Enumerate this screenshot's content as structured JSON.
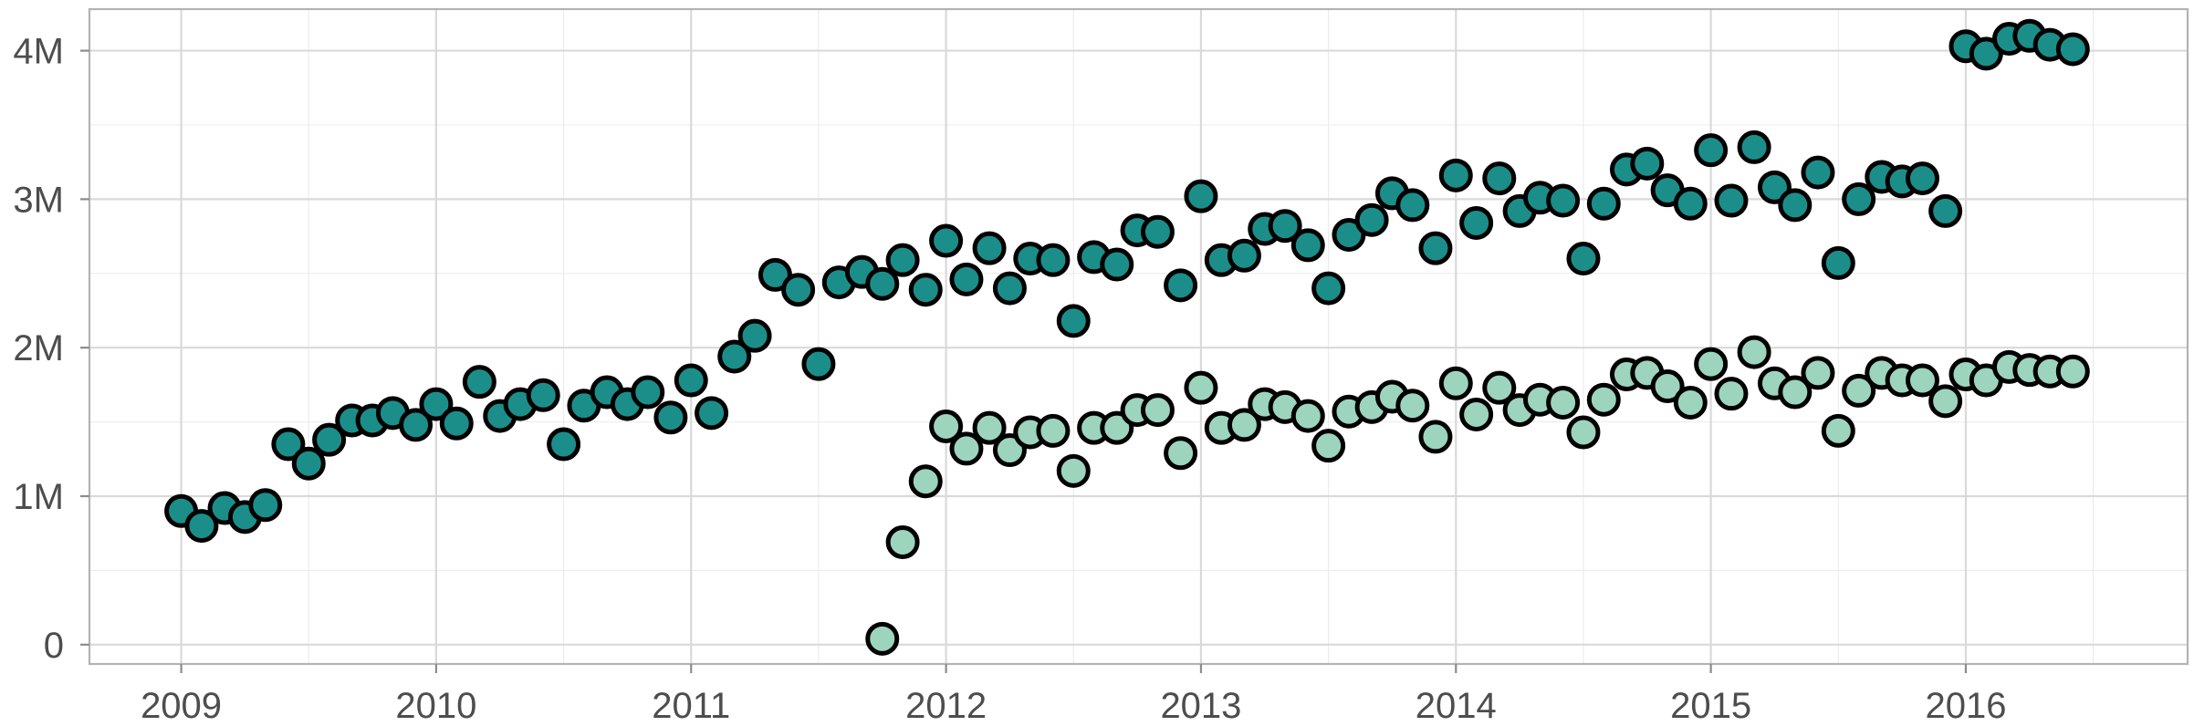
{
  "chart_data": {
    "type": "scatter",
    "title": "",
    "xlabel": "",
    "ylabel": "",
    "xlim": [
      2008.64,
      2016.87
    ],
    "ylim": [
      -130000,
      4280000
    ],
    "x_ticks": [
      2009,
      2010,
      2011,
      2012,
      2013,
      2014,
      2015,
      2016
    ],
    "x_tick_labels": [
      "2009",
      "2010",
      "2011",
      "2012",
      "2013",
      "2014",
      "2015",
      "2016"
    ],
    "y_ticks": [
      0,
      1000000,
      2000000,
      3000000,
      4000000
    ],
    "y_tick_labels": [
      "0",
      "1M",
      "2M",
      "3M",
      "4M"
    ],
    "grid": true,
    "legend": "none",
    "series": [
      {
        "color": "#1b8e8a",
        "points": [
          [
            2009.0,
            900000
          ],
          [
            2009.08,
            800000
          ],
          [
            2009.17,
            920000
          ],
          [
            2009.25,
            860000
          ],
          [
            2009.33,
            940000
          ],
          [
            2009.42,
            1350000
          ],
          [
            2009.5,
            1220000
          ],
          [
            2009.58,
            1380000
          ],
          [
            2009.67,
            1510000
          ],
          [
            2009.75,
            1510000
          ],
          [
            2009.83,
            1560000
          ],
          [
            2009.92,
            1480000
          ],
          [
            2010.0,
            1620000
          ],
          [
            2010.08,
            1490000
          ],
          [
            2010.17,
            1770000
          ],
          [
            2010.25,
            1540000
          ],
          [
            2010.33,
            1620000
          ],
          [
            2010.42,
            1680000
          ],
          [
            2010.5,
            1350000
          ],
          [
            2010.58,
            1610000
          ],
          [
            2010.67,
            1700000
          ],
          [
            2010.75,
            1620000
          ],
          [
            2010.83,
            1700000
          ],
          [
            2010.92,
            1530000
          ],
          [
            2011.0,
            1780000
          ],
          [
            2011.08,
            1560000
          ],
          [
            2011.17,
            1940000
          ],
          [
            2011.25,
            2080000
          ],
          [
            2011.33,
            2490000
          ],
          [
            2011.42,
            2390000
          ],
          [
            2011.5,
            1890000
          ],
          [
            2011.58,
            2440000
          ],
          [
            2011.67,
            2510000
          ],
          [
            2011.75,
            2430000
          ],
          [
            2011.83,
            2590000
          ],
          [
            2011.92,
            2390000
          ],
          [
            2012.0,
            2720000
          ],
          [
            2012.08,
            2460000
          ],
          [
            2012.17,
            2670000
          ],
          [
            2012.25,
            2400000
          ],
          [
            2012.33,
            2600000
          ],
          [
            2012.42,
            2590000
          ],
          [
            2012.5,
            2180000
          ],
          [
            2012.58,
            2610000
          ],
          [
            2012.67,
            2560000
          ],
          [
            2012.75,
            2790000
          ],
          [
            2012.83,
            2780000
          ],
          [
            2012.92,
            2420000
          ],
          [
            2013.0,
            3020000
          ],
          [
            2013.08,
            2590000
          ],
          [
            2013.17,
            2620000
          ],
          [
            2013.25,
            2800000
          ],
          [
            2013.33,
            2820000
          ],
          [
            2013.42,
            2690000
          ],
          [
            2013.5,
            2400000
          ],
          [
            2013.58,
            2760000
          ],
          [
            2013.67,
            2860000
          ],
          [
            2013.75,
            3040000
          ],
          [
            2013.83,
            2960000
          ],
          [
            2013.92,
            2670000
          ],
          [
            2014.0,
            3160000
          ],
          [
            2014.08,
            2840000
          ],
          [
            2014.17,
            3140000
          ],
          [
            2014.25,
            2920000
          ],
          [
            2014.33,
            3010000
          ],
          [
            2014.42,
            2990000
          ],
          [
            2014.5,
            2600000
          ],
          [
            2014.58,
            2970000
          ],
          [
            2014.67,
            3200000
          ],
          [
            2014.75,
            3240000
          ],
          [
            2014.83,
            3060000
          ],
          [
            2014.92,
            2970000
          ],
          [
            2015.0,
            3330000
          ],
          [
            2015.08,
            2990000
          ],
          [
            2015.17,
            3350000
          ],
          [
            2015.25,
            3080000
          ],
          [
            2015.33,
            2960000
          ],
          [
            2015.42,
            3180000
          ],
          [
            2015.5,
            2570000
          ],
          [
            2015.58,
            3000000
          ],
          [
            2015.67,
            3150000
          ],
          [
            2015.75,
            3120000
          ],
          [
            2015.83,
            3140000
          ],
          [
            2015.92,
            2920000
          ],
          [
            2016.0,
            4030000
          ],
          [
            2016.08,
            3980000
          ],
          [
            2016.17,
            4080000
          ],
          [
            2016.25,
            4100000
          ],
          [
            2016.33,
            4040000
          ],
          [
            2016.42,
            4010000
          ]
        ]
      },
      {
        "color": "#9dd4bd",
        "points": [
          [
            2011.75,
            40000
          ],
          [
            2011.83,
            690000
          ],
          [
            2011.92,
            1100000
          ],
          [
            2012.0,
            1470000
          ],
          [
            2012.08,
            1320000
          ],
          [
            2012.17,
            1460000
          ],
          [
            2012.25,
            1310000
          ],
          [
            2012.33,
            1430000
          ],
          [
            2012.42,
            1440000
          ],
          [
            2012.5,
            1170000
          ],
          [
            2012.58,
            1460000
          ],
          [
            2012.67,
            1460000
          ],
          [
            2012.75,
            1580000
          ],
          [
            2012.83,
            1580000
          ],
          [
            2012.92,
            1290000
          ],
          [
            2013.0,
            1730000
          ],
          [
            2013.08,
            1460000
          ],
          [
            2013.17,
            1480000
          ],
          [
            2013.25,
            1620000
          ],
          [
            2013.33,
            1600000
          ],
          [
            2013.42,
            1540000
          ],
          [
            2013.5,
            1340000
          ],
          [
            2013.58,
            1570000
          ],
          [
            2013.67,
            1600000
          ],
          [
            2013.75,
            1670000
          ],
          [
            2013.83,
            1610000
          ],
          [
            2013.92,
            1400000
          ],
          [
            2014.0,
            1760000
          ],
          [
            2014.08,
            1550000
          ],
          [
            2014.17,
            1730000
          ],
          [
            2014.25,
            1580000
          ],
          [
            2014.33,
            1650000
          ],
          [
            2014.42,
            1630000
          ],
          [
            2014.5,
            1430000
          ],
          [
            2014.58,
            1650000
          ],
          [
            2014.67,
            1820000
          ],
          [
            2014.75,
            1830000
          ],
          [
            2014.83,
            1740000
          ],
          [
            2014.92,
            1630000
          ],
          [
            2015.0,
            1890000
          ],
          [
            2015.08,
            1690000
          ],
          [
            2015.17,
            1970000
          ],
          [
            2015.25,
            1760000
          ],
          [
            2015.33,
            1700000
          ],
          [
            2015.42,
            1830000
          ],
          [
            2015.5,
            1440000
          ],
          [
            2015.58,
            1710000
          ],
          [
            2015.67,
            1830000
          ],
          [
            2015.75,
            1780000
          ],
          [
            2015.83,
            1780000
          ],
          [
            2015.92,
            1640000
          ],
          [
            2016.0,
            1820000
          ],
          [
            2016.08,
            1780000
          ],
          [
            2016.17,
            1870000
          ],
          [
            2016.25,
            1850000
          ],
          [
            2016.33,
            1840000
          ],
          [
            2016.42,
            1840000
          ]
        ]
      }
    ]
  }
}
